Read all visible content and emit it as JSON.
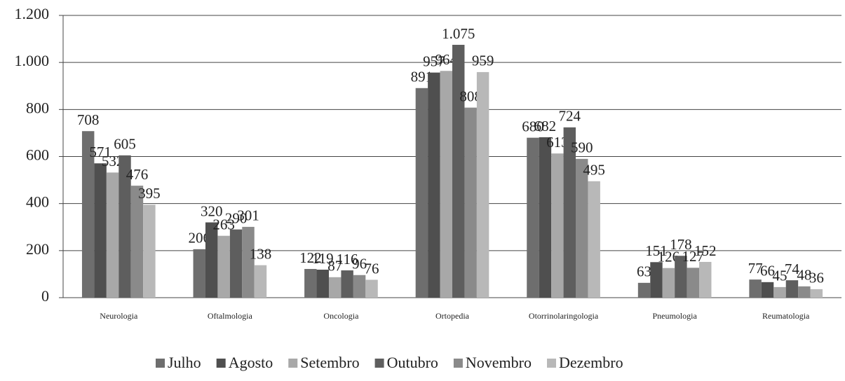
{
  "chart_data": {
    "type": "bar",
    "categories": [
      "Neurologia",
      "Oftalmologia",
      "Oncologia",
      "Ortopedia",
      "Otorrinolaringologia",
      "Pneumologia",
      "Reumatologia"
    ],
    "series": [
      {
        "name": "Julho",
        "color": "#6e6e6e",
        "values": [
          708,
          206,
          122,
          891,
          680,
          63,
          77
        ]
      },
      {
        "name": "Agosto",
        "color": "#4f4f4f",
        "values": [
          571,
          320,
          119,
          957,
          682,
          151,
          66
        ]
      },
      {
        "name": "Setembro",
        "color": "#a8a8a8",
        "values": [
          532,
          263,
          87,
          964,
          613,
          126,
          45
        ]
      },
      {
        "name": "Outubro",
        "color": "#5e5e5e",
        "values": [
          605,
          290,
          116,
          1075,
          724,
          178,
          74
        ],
        "value_labels": [
          "605",
          "290",
          "116",
          "1.075",
          "724",
          "178",
          "74"
        ]
      },
      {
        "name": "Novembro",
        "color": "#8a8a8a",
        "values": [
          476,
          301,
          96,
          808,
          590,
          127,
          48
        ]
      },
      {
        "name": "Dezembro",
        "color": "#b8b8b8",
        "values": [
          395,
          138,
          76,
          959,
          495,
          152,
          36
        ]
      }
    ],
    "ylim": [
      0,
      1200
    ],
    "yticks": [
      0,
      200,
      400,
      600,
      800,
      {
        "value": 1000,
        "label": "1.000"
      },
      {
        "value": 1200,
        "label": "1.200"
      }
    ],
    "grid": true,
    "legend": "bottom"
  }
}
